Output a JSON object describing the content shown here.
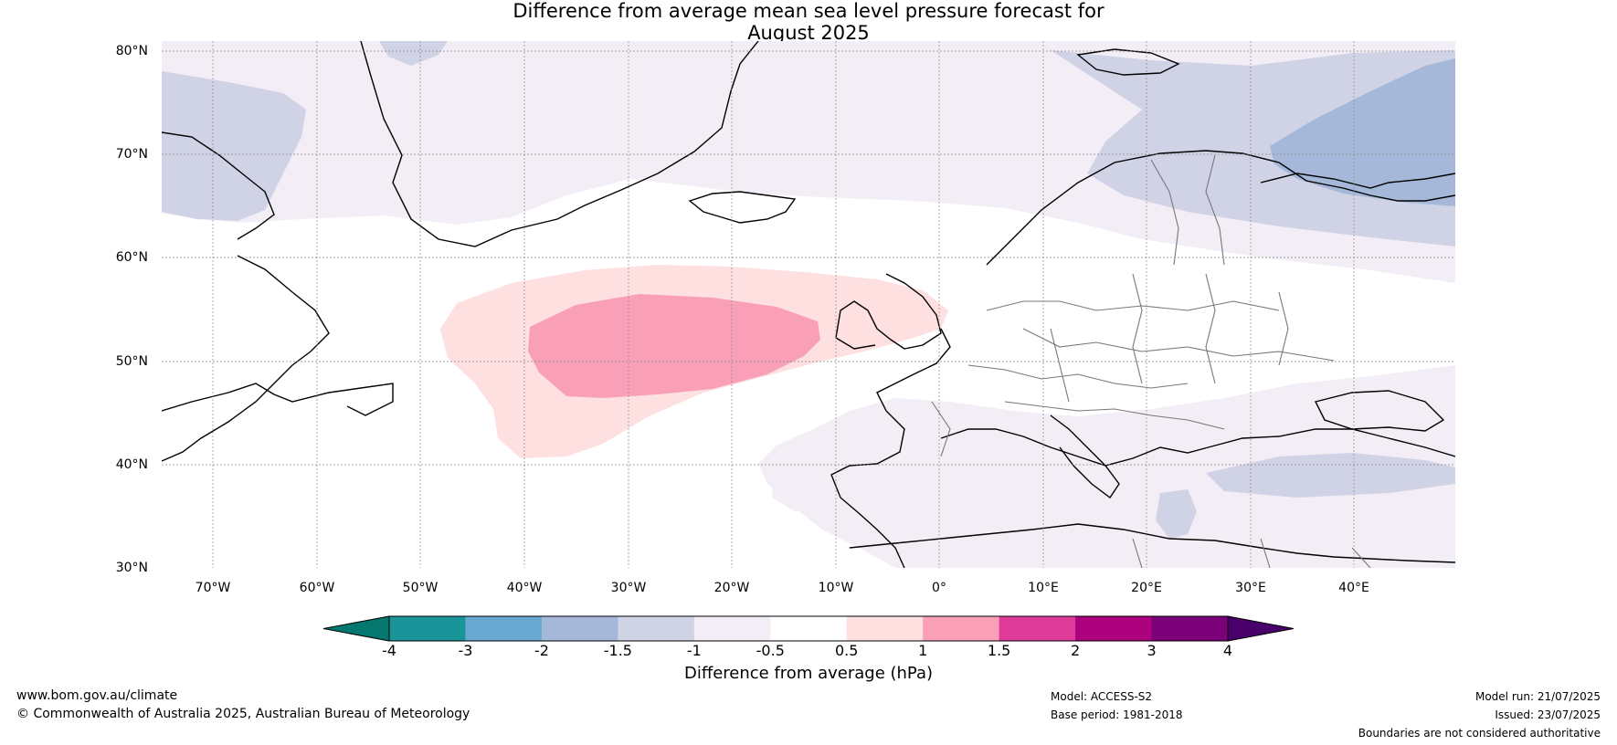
{
  "title_line1": "Difference from average mean sea level pressure forecast for",
  "title_line2": "August 2025",
  "latitudes": [
    "80°N",
    "70°N",
    "60°N",
    "50°N",
    "40°N",
    "30°N"
  ],
  "longitudes": [
    "70°W",
    "60°W",
    "50°W",
    "40°W",
    "30°W",
    "20°W",
    "10°W",
    "0°",
    "10°E",
    "20°E",
    "30°E",
    "40°E"
  ],
  "colorbar": {
    "ticks": [
      "-4",
      "-3",
      "-2",
      "-1.5",
      "-1",
      "-0.5",
      "0.5",
      "1",
      "1.5",
      "2",
      "3",
      "4"
    ],
    "colors": [
      "#04786e",
      "#1a9499",
      "#69a9d1",
      "#a5b8d9",
      "#d0d2e6",
      "#f3edf5",
      "#ffffff",
      "#fde0df",
      "#f9a0b8",
      "#dd3a9a",
      "#ad017e",
      "#7a0177",
      "#49006a"
    ],
    "label": "Difference from average (hPa)"
  },
  "footer": {
    "url": "www.bom.gov.au/climate",
    "copyright": "© Commonwealth of Australia 2025, Australian Bureau of Meteorology",
    "model": "Model: ACCESS-S2",
    "base_period": "Base period: 1981-2018",
    "model_run": "Model run: 21/07/2025",
    "issued": "Issued: 23/07/2025",
    "disclaimer": "Boundaries are not considered authoritative"
  }
}
